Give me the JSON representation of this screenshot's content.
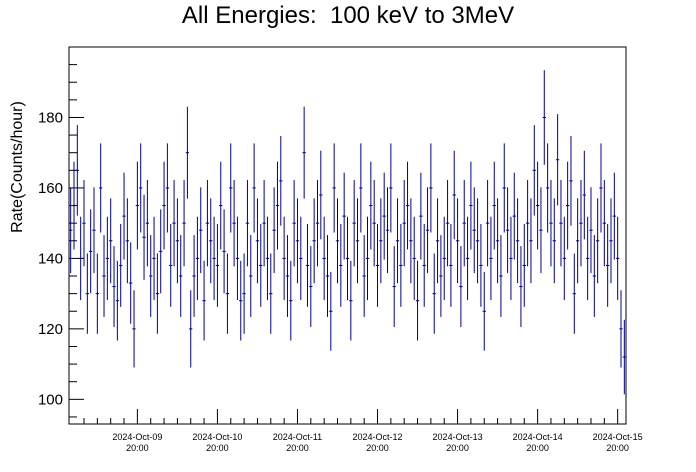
{
  "chart_data": {
    "type": "scatter",
    "title": "All Energies:  100 keV to 3MeV",
    "xlabel": "",
    "ylabel": "Rate(Counts/hour)",
    "ylim": [
      93,
      200
    ],
    "y_ticks": [
      100,
      120,
      140,
      160,
      180
    ],
    "x_tick_labels": [
      {
        "date": "2024-Oct-09",
        "time": "20:00"
      },
      {
        "date": "2024-Oct-10",
        "time": "20:00"
      },
      {
        "date": "2024-Oct-11",
        "time": "20:00"
      },
      {
        "date": "2024-Oct-12",
        "time": "20:00"
      },
      {
        "date": "2024-Oct-13",
        "time": "20:00"
      },
      {
        "date": "2024-Oct-14",
        "time": "20:00"
      },
      {
        "date": "2024-Oct-15",
        "time": "20:00"
      }
    ],
    "xlim_hours": [
      -0.5,
      166.5
    ],
    "grid": false,
    "series": [
      {
        "error_bars": "sqrt(N)",
        "x_hours": [
          0,
          1,
          2,
          3,
          4,
          5,
          6,
          7,
          8,
          9,
          10,
          11,
          12,
          13,
          14,
          15,
          16,
          17,
          18,
          19,
          20,
          21,
          22,
          23,
          24,
          25,
          26,
          27,
          28,
          29,
          30,
          31,
          32,
          33,
          34,
          35,
          36,
          37,
          38,
          39,
          40,
          41,
          42,
          43,
          44,
          45,
          46,
          47,
          48,
          49,
          50,
          51,
          52,
          53,
          54,
          55,
          56,
          57,
          58,
          59,
          60,
          61,
          62,
          63,
          64,
          65,
          66,
          67,
          68,
          69,
          70,
          71,
          72,
          73,
          74,
          75,
          76,
          77,
          78,
          79,
          80,
          81,
          82,
          83,
          84,
          85,
          86,
          87,
          88,
          89,
          90,
          91,
          92,
          93,
          94,
          95,
          96,
          97,
          98,
          99,
          100,
          101,
          102,
          103,
          104,
          105,
          106,
          107,
          108,
          109,
          110,
          111,
          112,
          113,
          114,
          115,
          116,
          117,
          118,
          119,
          120,
          121,
          122,
          123,
          124,
          125,
          126,
          127,
          128,
          129,
          130,
          131,
          132,
          133,
          134,
          135,
          136,
          137,
          138,
          139,
          140,
          141,
          142,
          143,
          144,
          145,
          146,
          147,
          148,
          149,
          150,
          151,
          152,
          153,
          154,
          155,
          156,
          157,
          158,
          159,
          160,
          161,
          162,
          163,
          164,
          165,
          166
        ],
        "values": [
          148,
          155,
          165,
          140,
          150,
          130,
          142,
          148,
          130,
          160,
          135,
          140,
          145,
          132,
          128,
          138,
          152,
          145,
          133,
          120,
          155,
          160,
          146,
          150,
          135,
          140,
          130,
          142,
          155,
          160,
          138,
          150,
          145,
          135,
          150,
          170,
          120,
          135,
          140,
          148,
          128,
          150,
          145,
          140,
          138,
          155,
          142,
          130,
          160,
          150,
          140,
          128,
          130,
          150,
          135,
          160,
          145,
          138,
          150,
          140,
          130,
          148,
          155,
          162,
          140,
          135,
          128,
          150,
          145,
          140,
          170,
          138,
          132,
          145,
          150,
          158,
          140,
          135,
          125,
          160,
          145,
          138,
          152,
          140,
          128,
          150,
          145,
          160,
          135,
          140,
          155,
          150,
          138,
          145,
          152,
          148,
          160,
          132,
          145,
          138,
          150,
          155,
          145,
          140,
          128,
          152,
          138,
          148,
          160,
          130,
          145,
          135,
          140,
          150,
          138,
          158,
          145,
          132,
          150,
          140,
          155,
          148,
          145,
          138,
          125,
          150,
          140,
          155,
          145,
          135,
          160,
          148,
          140,
          152,
          145,
          132,
          138,
          150,
          145,
          165,
          155,
          148,
          180,
          160,
          150,
          145,
          168,
          150,
          140,
          155,
          162,
          130,
          145,
          150,
          158,
          140,
          148,
          135,
          145,
          160,
          150,
          138,
          145,
          152,
          140,
          120,
          112
        ]
      }
    ]
  }
}
